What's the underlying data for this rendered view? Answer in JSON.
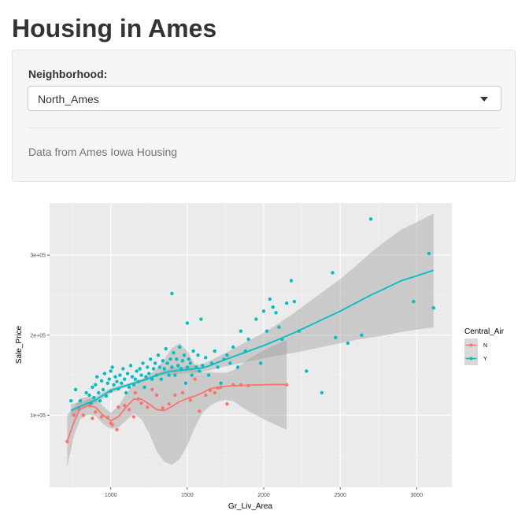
{
  "app": {
    "title": "Housing in Ames"
  },
  "controls": {
    "neighborhood": {
      "label": "Neighborhood:",
      "value": "North_Ames"
    },
    "help_text": "Data from Ames Iowa Housing"
  },
  "chart_data": {
    "type": "scatter",
    "xlabel": "Gr_Liv_Area",
    "ylabel": "Sale_Price",
    "xlim": [
      600,
      3230
    ],
    "ylim": [
      10000,
      365000
    ],
    "x_ticks": [
      {
        "v": 1000,
        "label": "1000"
      },
      {
        "v": 1500,
        "label": "1500"
      },
      {
        "v": 2000,
        "label": "2000"
      },
      {
        "v": 2500,
        "label": "2500"
      },
      {
        "v": 3000,
        "label": "3000"
      }
    ],
    "y_ticks": [
      {
        "v": 100000,
        "label": "1e+05"
      },
      {
        "v": 200000,
        "label": "2e+05"
      },
      {
        "v": 300000,
        "label": "3e+05"
      }
    ],
    "grid": true,
    "background": "#ebebeb",
    "legend": {
      "title": "Central_Air",
      "position": "right"
    },
    "series": [
      {
        "name": "N",
        "color": "#f8766d",
        "points": [
          [
            715,
            67000
          ],
          [
            760,
            100000
          ],
          [
            790,
            108000
          ],
          [
            820,
            100000
          ],
          [
            860,
            112000
          ],
          [
            880,
            96000
          ],
          [
            900,
            104000
          ],
          [
            940,
            98000
          ],
          [
            980,
            97000
          ],
          [
            1000,
            90000
          ],
          [
            1010,
            88000
          ],
          [
            1040,
            82000
          ],
          [
            1050,
            110000
          ],
          [
            1090,
            112000
          ],
          [
            1120,
            107000
          ],
          [
            1150,
            98000
          ],
          [
            1160,
            128000
          ],
          [
            1180,
            120000
          ],
          [
            1200,
            115000
          ],
          [
            1240,
            110000
          ],
          [
            1270,
            132000
          ],
          [
            1300,
            125000
          ],
          [
            1340,
            109000
          ],
          [
            1380,
            114000
          ],
          [
            1420,
            125000
          ],
          [
            1470,
            128000
          ],
          [
            1520,
            119000
          ],
          [
            1550,
            145000
          ],
          [
            1580,
            105000
          ],
          [
            1620,
            125000
          ],
          [
            1650,
            131000
          ],
          [
            1680,
            128000
          ],
          [
            1700,
            134000
          ],
          [
            1720,
            135000
          ],
          [
            1760,
            114000
          ],
          [
            1800,
            138000
          ],
          [
            1850,
            138000
          ],
          [
            1900,
            137000
          ],
          [
            2150,
            138000
          ]
        ],
        "smooth": {
          "x": [
            715,
            760,
            800,
            850,
            900,
            950,
            1000,
            1050,
            1100,
            1150,
            1200,
            1250,
            1300,
            1350,
            1400,
            1450,
            1500,
            1550,
            1600,
            1650,
            1700,
            1750,
            1800,
            1850,
            1900,
            2000,
            2100,
            2150
          ],
          "y": [
            67000,
            92000,
            108000,
            112000,
            110000,
            100000,
            93000,
            98000,
            110000,
            120000,
            120000,
            114000,
            107000,
            106000,
            111000,
            117000,
            121000,
            124000,
            128000,
            133000,
            135000,
            136000,
            137000,
            137000,
            137500,
            138000,
            138500,
            138000
          ],
          "lo": [
            35000,
            75000,
            95000,
            101000,
            99000,
            89000,
            83000,
            85000,
            93000,
            102000,
            95000,
            78000,
            55000,
            42000,
            38000,
            45000,
            62000,
            85000,
            103000,
            112000,
            117000,
            119000,
            118000,
            111000,
            105000,
            95000,
            86000,
            82000
          ],
          "hi": [
            100000,
            110000,
            121000,
            123000,
            121000,
            111000,
            103000,
            111000,
            127000,
            138000,
            145000,
            150000,
            158000,
            170000,
            184000,
            190000,
            180000,
            163000,
            153000,
            154000,
            153000,
            153000,
            156000,
            163000,
            170000,
            181000,
            190000,
            194000
          ]
        }
      },
      {
        "name": "Y",
        "color": "#00bfc4",
        "points": [
          [
            740,
            118000
          ],
          [
            770,
            132000
          ],
          [
            800,
            118000
          ],
          [
            840,
            128000
          ],
          [
            860,
            125000
          ],
          [
            870,
            115000
          ],
          [
            880,
            135000
          ],
          [
            890,
            122000
          ],
          [
            900,
            138000
          ],
          [
            910,
            148000
          ],
          [
            920,
            128000
          ],
          [
            930,
            118000
          ],
          [
            940,
            143000
          ],
          [
            950,
            132000
          ],
          [
            960,
            152000
          ],
          [
            970,
            124000
          ],
          [
            980,
            140000
          ],
          [
            990,
            145000
          ],
          [
            1000,
            130000
          ],
          [
            1000,
            155000
          ],
          [
            1010,
            160000
          ],
          [
            1020,
            138000
          ],
          [
            1030,
            148000
          ],
          [
            1040,
            142000
          ],
          [
            1050,
            133000
          ],
          [
            1060,
            150000
          ],
          [
            1070,
            140000
          ],
          [
            1080,
            158000
          ],
          [
            1090,
            145000
          ],
          [
            1100,
            128000
          ],
          [
            1110,
            152000
          ],
          [
            1120,
            135000
          ],
          [
            1130,
            162000
          ],
          [
            1140,
            148000
          ],
          [
            1150,
            138000
          ],
          [
            1160,
            145000
          ],
          [
            1170,
            155000
          ],
          [
            1180,
            142000
          ],
          [
            1190,
            158000
          ],
          [
            1200,
            150000
          ],
          [
            1210,
            165000
          ],
          [
            1220,
            135000
          ],
          [
            1230,
            148000
          ],
          [
            1240,
            160000
          ],
          [
            1250,
            152000
          ],
          [
            1260,
            170000
          ],
          [
            1270,
            145000
          ],
          [
            1280,
            158000
          ],
          [
            1290,
            165000
          ],
          [
            1300,
            150000
          ],
          [
            1310,
            175000
          ],
          [
            1320,
            160000
          ],
          [
            1330,
            145000
          ],
          [
            1340,
            168000
          ],
          [
            1350,
            158000
          ],
          [
            1360,
            183000
          ],
          [
            1370,
            165000
          ],
          [
            1380,
            150000
          ],
          [
            1390,
            170000
          ],
          [
            1400,
            160000
          ],
          [
            1400,
            252000
          ],
          [
            1410,
            178000
          ],
          [
            1420,
            150000
          ],
          [
            1430,
            170000
          ],
          [
            1440,
            162000
          ],
          [
            1450,
            185000
          ],
          [
            1460,
            158000
          ],
          [
            1470,
            168000
          ],
          [
            1480,
            175000
          ],
          [
            1490,
            140000
          ],
          [
            1500,
            160000
          ],
          [
            1500,
            215000
          ],
          [
            1510,
            170000
          ],
          [
            1520,
            165000
          ],
          [
            1530,
            150000
          ],
          [
            1540,
            180000
          ],
          [
            1560,
            160000
          ],
          [
            1570,
            175000
          ],
          [
            1580,
            155000
          ],
          [
            1590,
            220000
          ],
          [
            1600,
            162000
          ],
          [
            1620,
            172000
          ],
          [
            1640,
            150000
          ],
          [
            1660,
            165000
          ],
          [
            1680,
            180000
          ],
          [
            1700,
            160000
          ],
          [
            1720,
            140000
          ],
          [
            1740,
            170000
          ],
          [
            1760,
            175000
          ],
          [
            1780,
            165000
          ],
          [
            1800,
            185000
          ],
          [
            1830,
            160000
          ],
          [
            1850,
            205000
          ],
          [
            1880,
            180000
          ],
          [
            1900,
            195000
          ],
          [
            1950,
            220000
          ],
          [
            1980,
            165000
          ],
          [
            2000,
            230000
          ],
          [
            2020,
            205000
          ],
          [
            2040,
            245000
          ],
          [
            2060,
            235000
          ],
          [
            2080,
            228000
          ],
          [
            2100,
            210000
          ],
          [
            2120,
            195000
          ],
          [
            2150,
            240000
          ],
          [
            2180,
            268000
          ],
          [
            2200,
            242000
          ],
          [
            2230,
            205000
          ],
          [
            2280,
            155000
          ],
          [
            2380,
            128000
          ],
          [
            2450,
            278000
          ],
          [
            2470,
            197000
          ],
          [
            2550,
            190000
          ],
          [
            2640,
            200000
          ],
          [
            2700,
            345000
          ],
          [
            2980,
            242000
          ],
          [
            3080,
            302000
          ],
          [
            3110,
            234000
          ]
        ],
        "smooth": {
          "x": [
            740,
            800,
            850,
            900,
            950,
            1000,
            1050,
            1100,
            1150,
            1200,
            1250,
            1300,
            1350,
            1400,
            1450,
            1500,
            1550,
            1600,
            1650,
            1700,
            1800,
            1900,
            2000,
            2100,
            2200,
            2300,
            2400,
            2500,
            2600,
            2700,
            2800,
            2900,
            3000,
            3110
          ],
          "y": [
            106000,
            111000,
            115000,
            119000,
            125000,
            131000,
            134000,
            137000,
            140000,
            143000,
            146000,
            150000,
            153000,
            155000,
            156000,
            157000,
            158000,
            159000,
            162000,
            166000,
            173000,
            180000,
            187000,
            195000,
            203000,
            212000,
            221000,
            230000,
            240000,
            250000,
            259000,
            268000,
            274000,
            281000
          ],
          "lo": [
            98000,
            106000,
            110000,
            115000,
            121000,
            128000,
            131000,
            135000,
            138000,
            141000,
            144000,
            148000,
            150000,
            151000,
            152000,
            153000,
            153000,
            154000,
            156000,
            159000,
            163000,
            167000,
            171000,
            175000,
            178000,
            182000,
            186000,
            190000,
            194000,
            197000,
            200000,
            204000,
            207000,
            210000
          ],
          "hi": [
            114000,
            116000,
            120000,
            123000,
            129000,
            134000,
            137000,
            139000,
            142000,
            145000,
            148000,
            152000,
            156000,
            159000,
            160000,
            161000,
            163000,
            164000,
            168000,
            173000,
            183000,
            193000,
            203000,
            215000,
            228000,
            242000,
            256000,
            270000,
            286000,
            303000,
            318000,
            332000,
            341000,
            352000
          ]
        }
      }
    ]
  }
}
